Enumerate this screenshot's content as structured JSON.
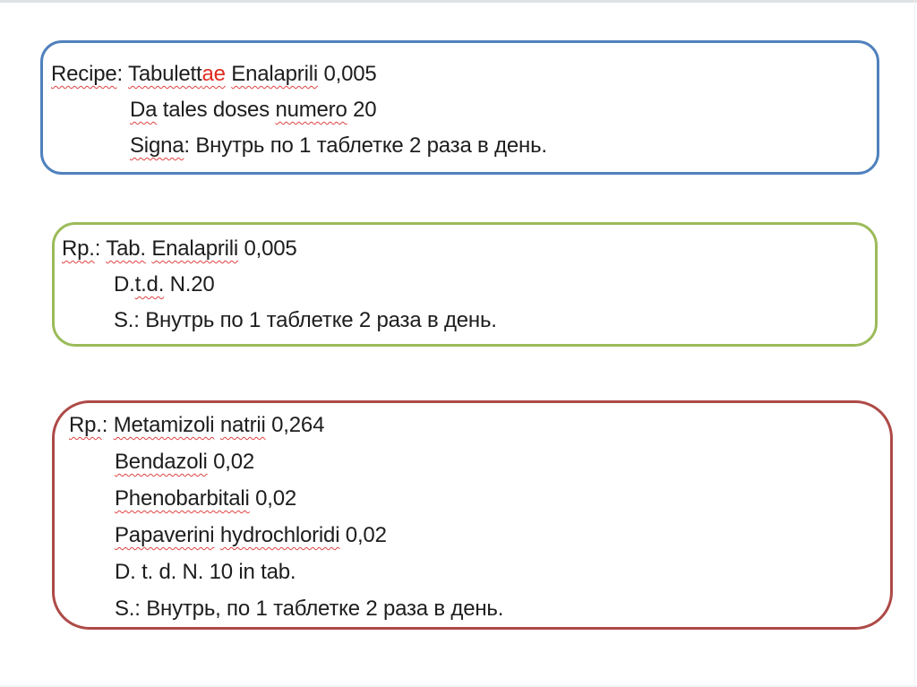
{
  "slide": {
    "background": "#ffffff"
  },
  "colors": {
    "blue_border": "#4f81bd",
    "green_border": "#9bbb59",
    "red_border": "#ad4a47",
    "text": "#1d1d1d",
    "suffix_red": "#e02b20",
    "squiggle_red": "#e04343"
  },
  "boxes": [
    {
      "id": "long-form-prescription",
      "border_color": "#4f81bd",
      "lines": [
        {
          "segments": [
            "Recipe",
            ": ",
            "Tabulett",
            "ae",
            " ",
            "Enalaprili",
            " 0,005"
          ]
        },
        {
          "segments": [
            "Da",
            " tales doses ",
            "numero",
            " 20"
          ]
        },
        {
          "segments": [
            "Signa",
            ": Внутрь по 1 таблетке 2 раза в день."
          ]
        }
      ]
    },
    {
      "id": "abbreviated-prescription",
      "border_color": "#9bbb59",
      "lines": [
        {
          "segments": [
            "Rp.",
            ": ",
            "Tab.",
            " ",
            "Enalaprili",
            " 0,005"
          ]
        },
        {
          "segments": [
            "D.",
            "t.d.",
            " N.20"
          ]
        },
        {
          "segments": [
            "S.: Внутрь по 1 таблетке 2 раза в день."
          ]
        }
      ]
    },
    {
      "id": "combination-prescription",
      "border_color": "#ad4a47",
      "lines": [
        {
          "segments": [
            "Rp.",
            ": ",
            "Metamizoli",
            " ",
            "natrii",
            " 0,264"
          ]
        },
        {
          "segments": [
            "Bendazoli",
            " 0,02"
          ]
        },
        {
          "segments": [
            "Phenobarbitali",
            " 0,02"
          ]
        },
        {
          "segments": [
            "Papaverini",
            " ",
            "hydrochloridi",
            " 0,02"
          ]
        },
        {
          "segments": [
            "D. t. d. N. 10 in tab."
          ]
        },
        {
          "segments": [
            "S.: Внутрь, по 1 таблетке 2 раза в день."
          ]
        }
      ]
    }
  ]
}
